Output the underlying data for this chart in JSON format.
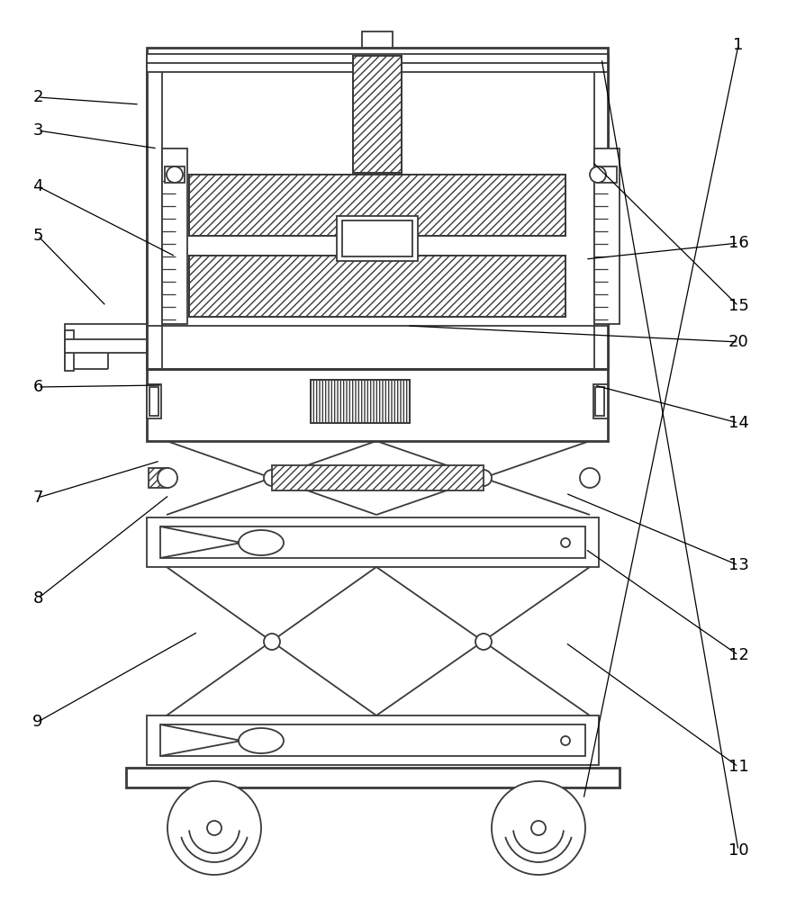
{
  "line_color": "#3a3a3a",
  "bg_color": "#ffffff",
  "lw": 1.3,
  "tlw": 2.0,
  "labels": [
    [
      "1",
      820,
      950,
      648,
      112
    ],
    [
      "2",
      42,
      892,
      155,
      884
    ],
    [
      "3",
      42,
      855,
      175,
      835
    ],
    [
      "4",
      42,
      793,
      195,
      715
    ],
    [
      "5",
      42,
      738,
      118,
      660
    ],
    [
      "6",
      42,
      570,
      180,
      572
    ],
    [
      "7",
      42,
      447,
      178,
      488
    ],
    [
      "8",
      42,
      335,
      188,
      450
    ],
    [
      "9",
      42,
      198,
      220,
      298
    ],
    [
      "10",
      820,
      55,
      668,
      935
    ],
    [
      "11",
      820,
      148,
      628,
      286
    ],
    [
      "12",
      820,
      272,
      650,
      390
    ],
    [
      "13",
      820,
      372,
      628,
      452
    ],
    [
      "14",
      820,
      530,
      660,
      572
    ],
    [
      "15",
      820,
      660,
      658,
      820
    ],
    [
      "16",
      820,
      730,
      650,
      712
    ],
    [
      "20",
      820,
      620,
      452,
      638
    ]
  ]
}
